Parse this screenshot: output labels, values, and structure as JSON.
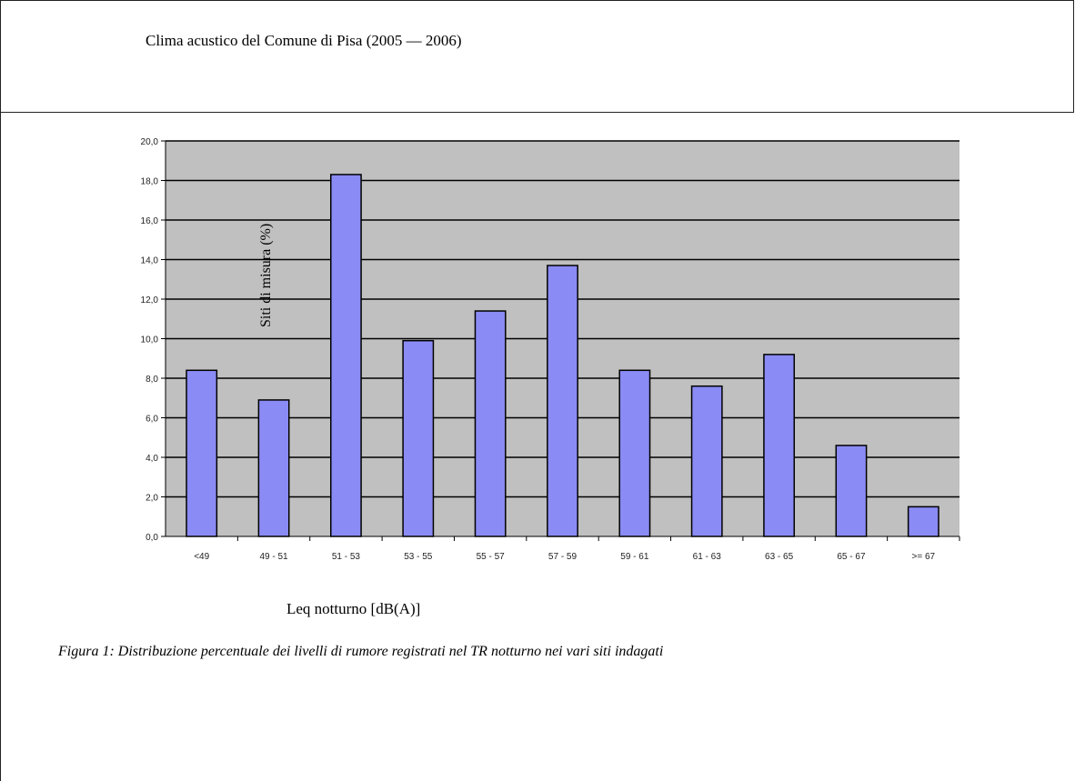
{
  "header": {
    "title": "Clima acustico del Comune di Pisa (2005 — 2006)"
  },
  "chart_data": {
    "type": "bar",
    "title": "",
    "xlabel": "Leq notturno [dB(A)]",
    "ylabel": "Siti di misura (%)",
    "ylim": [
      0,
      20
    ],
    "yticks": [
      "0,0",
      "2,0",
      "4,0",
      "6,0",
      "8,0",
      "10,0",
      "12,0",
      "14,0",
      "16,0",
      "18,0",
      "20,0"
    ],
    "grid": true,
    "legend": "none",
    "categories": [
      "<49",
      "49 - 51",
      "51 - 53",
      "53 - 55",
      "55 - 57",
      "57 - 59",
      "59 - 61",
      "61 - 63",
      "63 - 65",
      "65 - 67",
      ">= 67"
    ],
    "values": [
      8.4,
      6.9,
      18.3,
      9.9,
      11.4,
      13.7,
      8.4,
      7.6,
      9.2,
      4.6,
      1.5
    ],
    "colors": {
      "bar": "#8b8bf5",
      "bar_stroke": "#000000",
      "plot_bg": "#c0c0c0",
      "grid": "#000000"
    }
  },
  "caption": "Figura 1: Distribuzione percentuale dei livelli di rumore registrati nel TR notturno nei vari siti indagati"
}
